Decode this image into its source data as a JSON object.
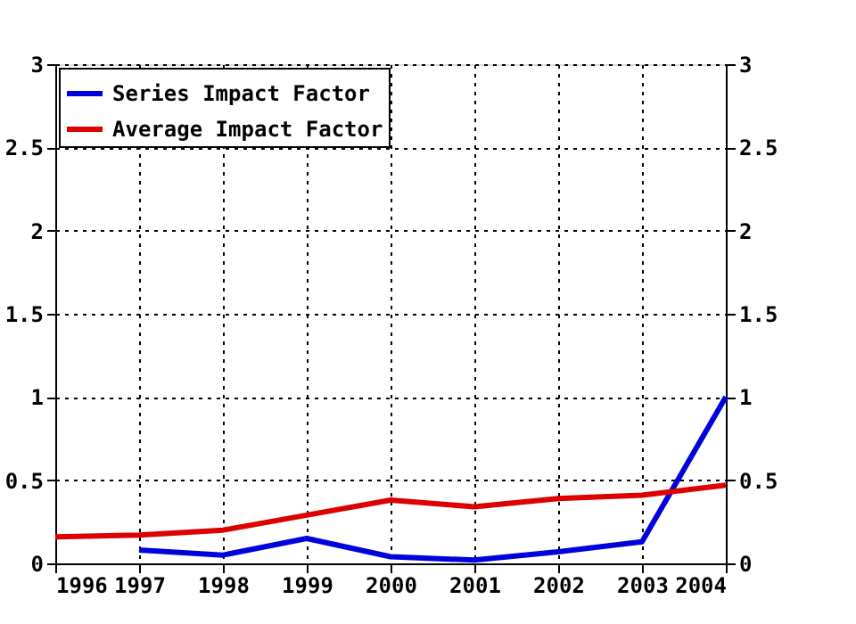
{
  "chart_data": {
    "type": "line",
    "x": [
      1996,
      1997,
      1998,
      1999,
      2000,
      2001,
      2002,
      2003,
      2004
    ],
    "series": [
      {
        "name": "Series Impact Factor",
        "color": "#0000dd",
        "values": [
          null,
          0.08,
          0.05,
          0.15,
          0.04,
          0.02,
          0.07,
          0.13,
          1.0
        ]
      },
      {
        "name": "Average Impact Factor",
        "color": "#dd0000",
        "values": [
          0.16,
          0.17,
          0.2,
          0.29,
          0.38,
          0.34,
          0.39,
          0.41,
          0.47
        ]
      }
    ],
    "xlim": [
      1996,
      2004
    ],
    "xticks": [
      1996,
      1997,
      1998,
      1999,
      2000,
      2001,
      2002,
      2003,
      2004
    ],
    "ylim": [
      0,
      3
    ],
    "yticks": [
      0,
      {
        "value": 0.5,
        "label": "0.5"
      },
      1,
      {
        "value": 1.5,
        "label": "1.5"
      },
      2,
      {
        "value": 2.5,
        "label": "2.5"
      },
      3
    ],
    "y2lim": [
      0,
      3
    ],
    "y2ticks": [
      0,
      {
        "value": 0.5,
        "label": "0.5"
      },
      1,
      {
        "value": 1.5,
        "label": "1.5"
      },
      2,
      {
        "value": 2.5,
        "label": "2.5"
      },
      3
    ],
    "grid": true,
    "legend": "top left",
    "marker": "none",
    "line_style": "solid"
  }
}
